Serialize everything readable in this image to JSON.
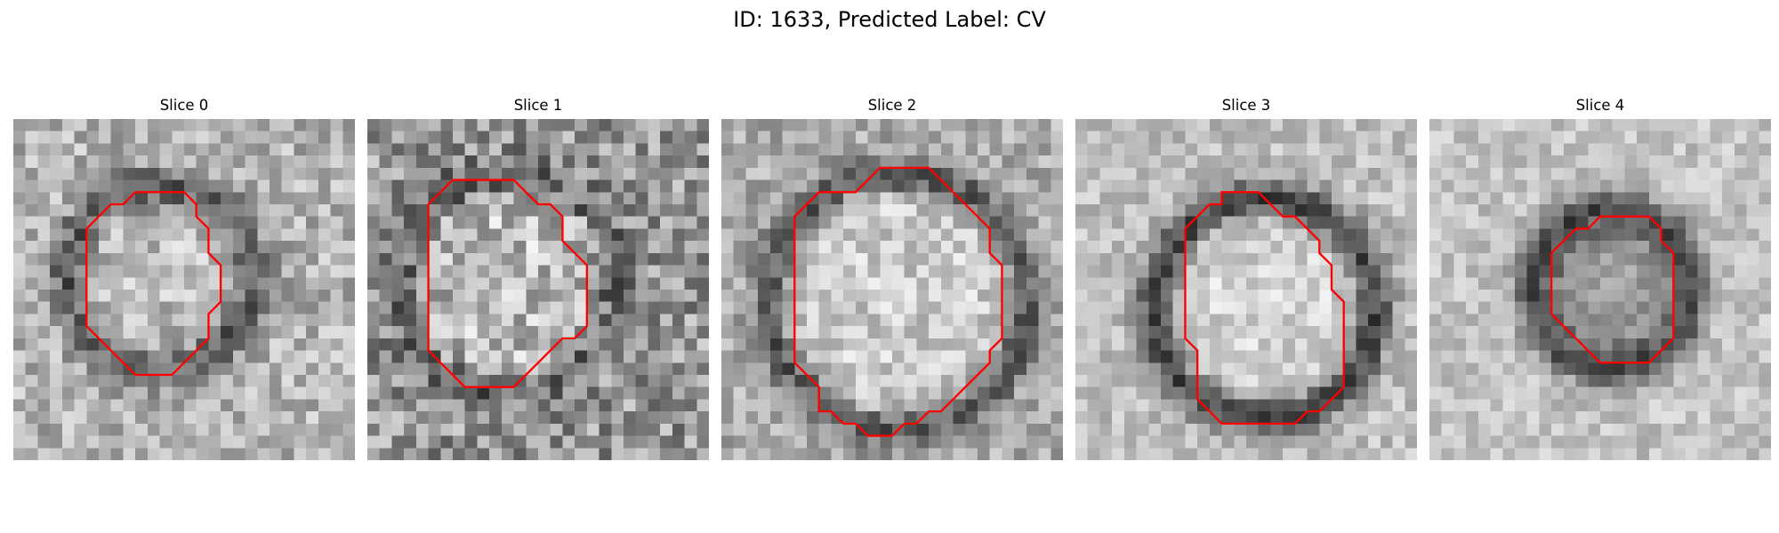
{
  "figure": {
    "title": "ID: 1633, Predicted Label: CV"
  },
  "colors": {
    "contour": "#ff0000",
    "background": "#ffffff"
  },
  "slices": [
    {
      "label": "Slice 0",
      "contour": [
        [
          12,
          6
        ],
        [
          14,
          6
        ],
        [
          15,
          7
        ],
        [
          15,
          8
        ],
        [
          16,
          9
        ],
        [
          16,
          11
        ],
        [
          17,
          12
        ],
        [
          17,
          15
        ],
        [
          16,
          16
        ],
        [
          16,
          18
        ],
        [
          15,
          19
        ],
        [
          14,
          20
        ],
        [
          13,
          21
        ],
        [
          10,
          21
        ],
        [
          9,
          20
        ],
        [
          8,
          19
        ],
        [
          7,
          18
        ],
        [
          6,
          17
        ],
        [
          6,
          9
        ],
        [
          7,
          8
        ],
        [
          8,
          7
        ],
        [
          9,
          7
        ],
        [
          10,
          6
        ]
      ]
    },
    {
      "label": "Slice 1",
      "contour": [
        [
          8,
          5
        ],
        [
          12,
          5
        ],
        [
          13,
          6
        ],
        [
          14,
          7
        ],
        [
          15,
          7
        ],
        [
          16,
          8
        ],
        [
          16,
          10
        ],
        [
          17,
          11
        ],
        [
          18,
          12
        ],
        [
          18,
          17
        ],
        [
          17,
          18
        ],
        [
          16,
          18
        ],
        [
          15,
          19
        ],
        [
          14,
          20
        ],
        [
          13,
          21
        ],
        [
          12,
          22
        ],
        [
          8,
          22
        ],
        [
          7,
          21
        ],
        [
          6,
          20
        ],
        [
          5,
          19
        ],
        [
          5,
          7
        ],
        [
          6,
          6
        ],
        [
          7,
          5
        ]
      ]
    },
    {
      "label": "Slice 2",
      "contour": [
        [
          13,
          4
        ],
        [
          17,
          4
        ],
        [
          18,
          5
        ],
        [
          19,
          6
        ],
        [
          20,
          7
        ],
        [
          21,
          8
        ],
        [
          22,
          9
        ],
        [
          22,
          11
        ],
        [
          23,
          12
        ],
        [
          23,
          18
        ],
        [
          22,
          19
        ],
        [
          22,
          20
        ],
        [
          21,
          21
        ],
        [
          20,
          22
        ],
        [
          19,
          23
        ],
        [
          18,
          24
        ],
        [
          17,
          24
        ],
        [
          16,
          25
        ],
        [
          15,
          25
        ],
        [
          14,
          26
        ],
        [
          12,
          26
        ],
        [
          11,
          25
        ],
        [
          10,
          25
        ],
        [
          9,
          24
        ],
        [
          8,
          24
        ],
        [
          8,
          22
        ],
        [
          7,
          21
        ],
        [
          6,
          20
        ],
        [
          6,
          8
        ],
        [
          7,
          7
        ],
        [
          8,
          6
        ],
        [
          11,
          6
        ],
        [
          12,
          5
        ]
      ]
    },
    {
      "label": "Slice 3",
      "contour": [
        [
          12,
          6
        ],
        [
          15,
          6
        ],
        [
          16,
          7
        ],
        [
          17,
          8
        ],
        [
          18,
          8
        ],
        [
          19,
          9
        ],
        [
          20,
          10
        ],
        [
          20,
          11
        ],
        [
          21,
          12
        ],
        [
          21,
          14
        ],
        [
          22,
          15
        ],
        [
          22,
          22
        ],
        [
          21,
          23
        ],
        [
          20,
          24
        ],
        [
          19,
          24
        ],
        [
          18,
          25
        ],
        [
          12,
          25
        ],
        [
          11,
          24
        ],
        [
          10,
          23
        ],
        [
          10,
          19
        ],
        [
          9,
          18
        ],
        [
          9,
          9
        ],
        [
          10,
          8
        ],
        [
          11,
          7
        ],
        [
          12,
          7
        ]
      ]
    },
    {
      "label": "Slice 4",
      "contour": [
        [
          14,
          8
        ],
        [
          18,
          8
        ],
        [
          19,
          9
        ],
        [
          19,
          10
        ],
        [
          20,
          11
        ],
        [
          20,
          18
        ],
        [
          19,
          19
        ],
        [
          18,
          20
        ],
        [
          14,
          20
        ],
        [
          13,
          19
        ],
        [
          12,
          18
        ],
        [
          11,
          17
        ],
        [
          10,
          16
        ],
        [
          10,
          11
        ],
        [
          11,
          10
        ],
        [
          12,
          9
        ],
        [
          13,
          9
        ]
      ]
    }
  ]
}
